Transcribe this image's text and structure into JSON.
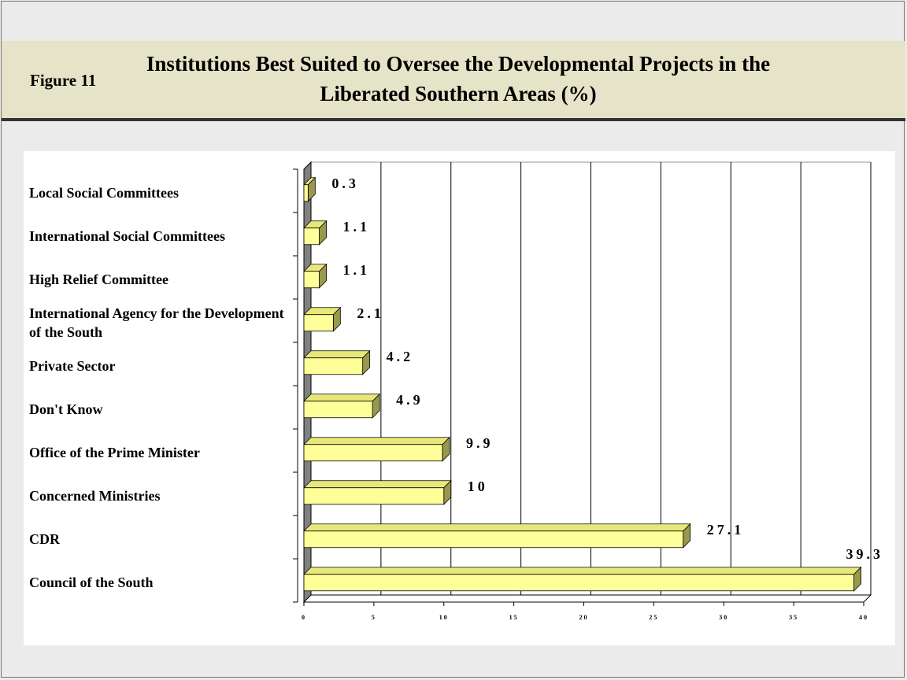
{
  "figure_label": "Figure 11",
  "chart_data": {
    "type": "bar",
    "orientation": "horizontal",
    "title": "Institutions Best Suited to Oversee the Developmental Projects in the Liberated Southern Areas (%)",
    "categories": [
      "Local Social Committees",
      "International Social Committees",
      "High Relief Committee",
      "International Agency for the Development of the South",
      "Private Sector",
      "Don't Know",
      "Office of the Prime Minister",
      "Concerned Ministries",
      "CDR",
      "Council of the South"
    ],
    "values": [
      0.3,
      1.1,
      1.1,
      2.1,
      4.2,
      4.9,
      9.9,
      10,
      27.1,
      39.3
    ],
    "color": "#ffff99",
    "xlim": [
      0,
      40
    ],
    "xticks": [
      0,
      5,
      10,
      15,
      20,
      25,
      30,
      35,
      40
    ],
    "grid": true
  }
}
